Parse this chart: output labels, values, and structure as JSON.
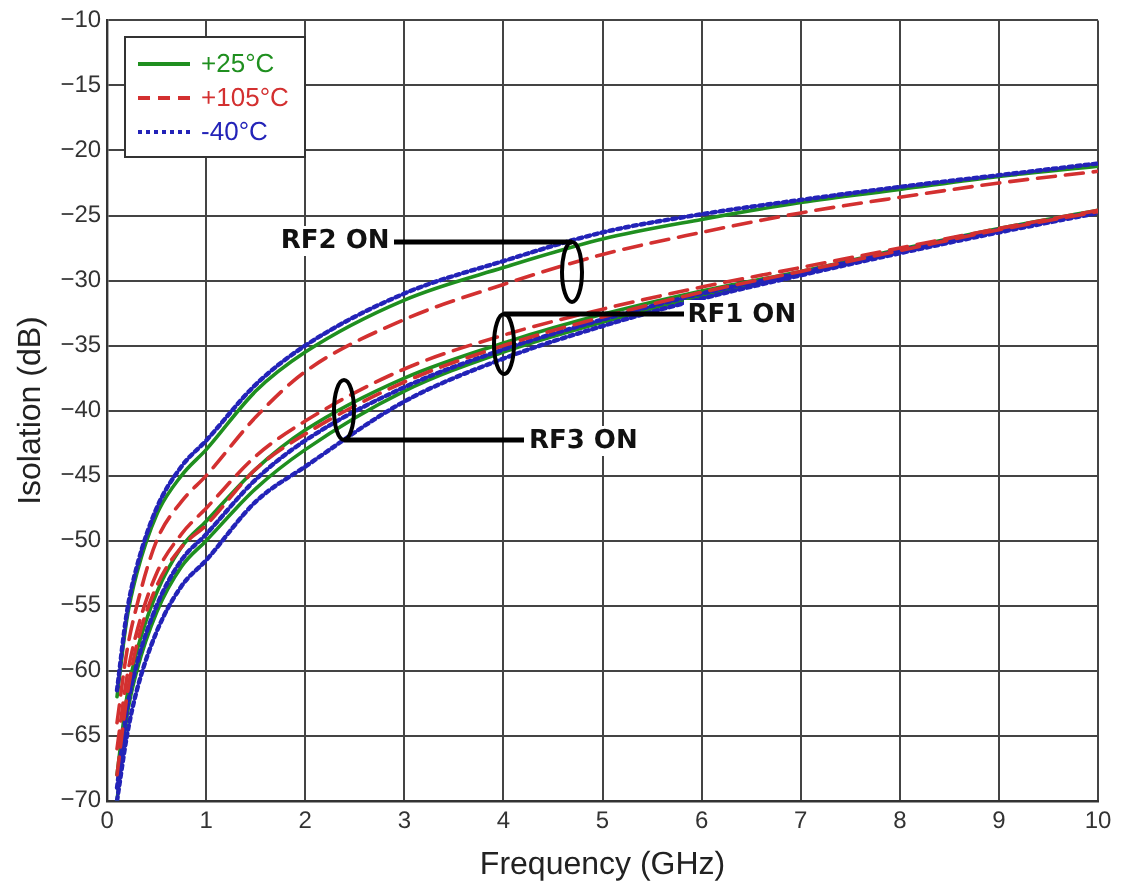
{
  "chart_data": {
    "type": "line",
    "xlabel": "Frequency (GHz)",
    "ylabel": "Isolation (dB)",
    "xlim": [
      0,
      10
    ],
    "xticks": [
      0,
      1,
      2,
      3,
      4,
      5,
      6,
      7,
      8,
      9,
      10
    ],
    "ylim": [
      -70,
      -10
    ],
    "yticks": [
      -70,
      -65,
      -60,
      -55,
      -50,
      -45,
      -40,
      -35,
      -30,
      -25,
      -20,
      -15,
      -10
    ],
    "grid": true,
    "legend": "top left",
    "marker": "none",
    "x": [
      0.1,
      0.2,
      0.3,
      0.5,
      0.75,
      1,
      1.5,
      2,
      3,
      4,
      5,
      6,
      7,
      8,
      9,
      10
    ],
    "series": [
      {
        "name": "+25°C",
        "color": "#1f8f1f",
        "line_style": "solid",
        "values": [
          -62,
          -56,
          -52.5,
          -48,
          -45,
          -43,
          -38.5,
          -35.5,
          -31.5,
          -29,
          -26.8,
          -25.3,
          -24,
          -23,
          -22,
          -21.2
        ]
      },
      {
        "name": "+105°C",
        "color": "#d33030",
        "line_style": "dashed",
        "values": [
          -64,
          -58.5,
          -55,
          -50,
          -47,
          -45,
          -40.5,
          -37,
          -33,
          -30.3,
          -28,
          -26.3,
          -24.8,
          -23.6,
          -22.5,
          -21.6
        ]
      },
      {
        "name": "-40°C",
        "color": "#2323b8",
        "line_style": "dotted",
        "values": [
          -61.5,
          -55.5,
          -52,
          -47.5,
          -44.3,
          -42.3,
          -38,
          -35,
          -31,
          -28.5,
          -26.3,
          -24.9,
          -23.8,
          -22.8,
          -21.9,
          -21
        ]
      },
      {
        "color": "#1f8f1f",
        "line_style": "solid",
        "values": [
          -68,
          -62,
          -58.5,
          -54,
          -50.5,
          -48.5,
          -44.5,
          -41.5,
          -37.5,
          -34.8,
          -32.6,
          -30.8,
          -29.3,
          -27.6,
          -26,
          -24.6
        ]
      },
      {
        "color": "#d33030",
        "line_style": "dashed",
        "values": [
          -66,
          -60.5,
          -57,
          -52.5,
          -49.5,
          -47.5,
          -43.5,
          -40.8,
          -36.8,
          -34.2,
          -32.2,
          -30.5,
          -29,
          -27.5,
          -26,
          -24.6
        ]
      },
      {
        "color": "#2323b8",
        "line_style": "dotted",
        "values": [
          -69,
          -63,
          -59.5,
          -55,
          -51.5,
          -49.5,
          -45.3,
          -42.3,
          -38.2,
          -35.3,
          -33,
          -31,
          -29.4,
          -27.7,
          -26.1,
          -24.7
        ]
      },
      {
        "color": "#1f8f1f",
        "line_style": "solid",
        "values": [
          -70,
          -63.5,
          -60,
          -55.5,
          -52,
          -50,
          -46,
          -43,
          -38.5,
          -35.5,
          -33.2,
          -31.2,
          -29.5,
          -27.8,
          -26.2,
          -24.7
        ]
      },
      {
        "color": "#d33030",
        "line_style": "dashed",
        "values": [
          -68,
          -62,
          -58,
          -53.5,
          -50.5,
          -48.8,
          -44.5,
          -41.8,
          -37.8,
          -35,
          -32.8,
          -30.9,
          -29.3,
          -27.7,
          -26.1,
          -24.7
        ]
      },
      {
        "color": "#2323b8",
        "line_style": "dotted",
        "values": [
          -70,
          -65,
          -61.5,
          -57,
          -53.5,
          -51.5,
          -47,
          -44.3,
          -39.3,
          -36,
          -33.5,
          -31.4,
          -29.6,
          -27.9,
          -26.3,
          -24.8
        ]
      }
    ],
    "annotations": [
      {
        "text": "RF2 ON",
        "x": 4.7,
        "y": -27
      },
      {
        "text": "RF1 ON",
        "x": 4,
        "y": -32.6
      },
      {
        "text": "RF3 ON",
        "x": 2.4,
        "y": -42.3
      }
    ]
  }
}
